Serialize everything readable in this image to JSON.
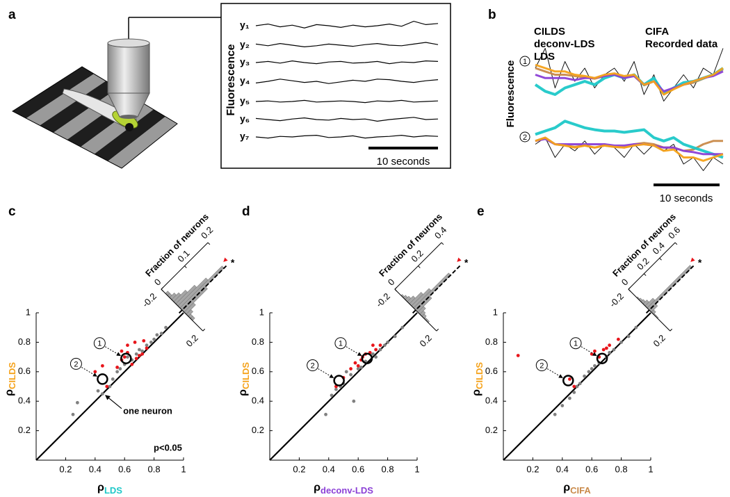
{
  "chart_data": [
    {
      "type": "traces",
      "panel": "a",
      "y_label": "Fluorescence",
      "scale_bar": "10 seconds",
      "series": [
        {
          "name": "y₁",
          "values": [
            0,
            0.3,
            -0.2,
            0.1,
            -0.4,
            0.2,
            0,
            -0.3,
            0.1,
            -0.2,
            0,
            0.3,
            -0.1,
            0.8,
            0.2,
            0.4
          ]
        },
        {
          "name": "y₂",
          "values": [
            0.2,
            -0.1,
            0.3,
            0,
            -0.3,
            -0.1,
            0.2,
            0,
            -0.2,
            0.1,
            0.3,
            0,
            -0.1,
            0.2,
            0.5,
            0.1
          ]
        },
        {
          "name": "y₃",
          "values": [
            0,
            0.2,
            -0.1,
            0.3,
            0,
            -0.2,
            0.1,
            0.2,
            -0.1,
            0,
            0.2,
            -0.2,
            0.1,
            0,
            0.3,
            0.2
          ]
        },
        {
          "name": "y₄",
          "values": [
            -0.3,
            0,
            0.4,
            0.1,
            -0.2,
            0,
            -0.4,
            -0.1,
            0.2,
            0,
            0.4,
            0.3,
            0,
            -0.2,
            0.1,
            0.3
          ]
        },
        {
          "name": "y₅",
          "values": [
            0,
            0.1,
            -0.1,
            0,
            0.2,
            -0.1,
            0,
            0.1,
            0,
            -0.2,
            0.1,
            0,
            0.2,
            -0.1,
            0,
            0.1
          ]
        },
        {
          "name": "y₆",
          "values": [
            0.2,
            0,
            -0.2,
            0.1,
            0.3,
            0,
            -0.1,
            0.2,
            0,
            0.1,
            -0.3,
            0,
            0.2,
            0.4,
            0,
            0.1
          ]
        },
        {
          "name": "y₇",
          "values": [
            0,
            -0.2,
            0.1,
            0,
            0.2,
            0.3,
            -0.1,
            0,
            0.2,
            -0.2,
            0,
            0.1,
            0.3,
            0,
            0.2,
            0.1
          ]
        }
      ]
    },
    {
      "type": "overlay",
      "panel": "b",
      "y_label": "Fluorescence",
      "scale_bar": "10 seconds",
      "neurons": [
        "1",
        "2"
      ],
      "series": [
        {
          "name": "CILDS",
          "color": "#f5a21a",
          "values": [
            [
              0.65,
              0.6,
              0.55,
              0.55,
              0.5,
              0.48,
              0.45,
              0.5,
              0.52,
              0.48,
              0.5,
              0.35,
              0.4,
              0.2,
              0.28,
              0.35,
              0.4,
              0.45,
              0.5,
              0.6
            ],
            [
              0.55,
              0.6,
              0.5,
              0.48,
              0.45,
              0.48,
              0.45,
              0.48,
              0.46,
              0.45,
              0.48,
              0.5,
              0.48,
              0.4,
              0.42,
              0.3,
              0.3,
              0.25,
              0.3,
              0.35
            ]
          ]
        },
        {
          "name": "deconv-LDS",
          "color": "#8b3fd6",
          "values": [
            [
              0.5,
              0.45,
              0.45,
              0.45,
              0.42,
              0.45,
              0.45,
              0.48,
              0.5,
              0.45,
              0.48,
              0.35,
              0.4,
              0.25,
              0.3,
              0.35,
              0.4,
              0.45,
              0.48,
              0.55
            ],
            [
              0.55,
              0.58,
              0.5,
              0.5,
              0.5,
              0.5,
              0.5,
              0.5,
              0.48,
              0.48,
              0.5,
              0.5,
              0.48,
              0.45,
              0.45,
              0.4,
              0.38,
              0.35,
              0.35,
              0.35
            ]
          ]
        },
        {
          "name": "LDS",
          "color": "#1ec8c8",
          "values": [
            [
              0.35,
              0.25,
              0.2,
              0.3,
              0.35,
              0.4,
              0.35,
              0.45,
              0.5,
              0.45,
              0.5,
              0.35,
              0.45,
              0.22,
              0.3,
              0.38,
              0.4,
              0.45,
              0.5,
              0.6
            ],
            [
              0.65,
              0.7,
              0.75,
              0.85,
              0.8,
              0.75,
              0.72,
              0.7,
              0.7,
              0.68,
              0.7,
              0.72,
              0.6,
              0.55,
              0.6,
              0.5,
              0.45,
              0.4,
              0.35,
              0.3
            ]
          ]
        },
        {
          "name": "CIFA",
          "color": "#c98a4a",
          "values": [
            [
              0.6,
              0.55,
              0.5,
              0.5,
              0.48,
              0.46,
              0.44,
              0.48,
              0.5,
              0.46,
              0.48,
              0.34,
              0.4,
              0.22,
              0.3,
              0.35,
              0.38,
              0.44,
              0.5,
              0.58
            ],
            [
              0.55,
              0.6,
              0.5,
              0.48,
              0.46,
              0.48,
              0.45,
              0.48,
              0.46,
              0.45,
              0.5,
              0.52,
              0.5,
              0.45,
              0.45,
              0.4,
              0.42,
              0.5,
              0.55,
              0.55
            ]
          ]
        },
        {
          "name": "Recorded data",
          "color": "#000000",
          "values": [
            [
              0.6,
              0.9,
              0.3,
              0.7,
              0.4,
              0.6,
              0.3,
              0.5,
              0.6,
              0.4,
              0.7,
              0.2,
              0.5,
              0.1,
              0.3,
              0.5,
              0.3,
              0.6,
              0.5,
              0.9
            ],
            [
              0.5,
              0.6,
              0.3,
              0.5,
              0.4,
              0.55,
              0.35,
              0.5,
              0.45,
              0.3,
              0.5,
              0.35,
              0.5,
              0.4,
              0.5,
              0.2,
              0.3,
              0.1,
              0.3,
              0.2
            ]
          ]
        }
      ]
    },
    {
      "type": "scatter",
      "panel": "c",
      "x_label": {
        "symbol": "ρ",
        "subscript": "LDS",
        "color": "#1ec8c8"
      },
      "y_label": {
        "symbol": "ρ",
        "subscript": "CILDS",
        "color": "#f5a21a"
      },
      "xlim": [
        0,
        1
      ],
      "ylim": [
        0,
        1
      ],
      "xticks": [
        0.2,
        0.4,
        0.6,
        0.8,
        1
      ],
      "yticks": [
        0.2,
        0.4,
        0.6,
        0.8,
        1
      ],
      "points": {
        "color": "#808080",
        "x": [
          0.25,
          0.28,
          0.42,
          0.45,
          0.5,
          0.52,
          0.55,
          0.57,
          0.6,
          0.62,
          0.65,
          0.68,
          0.7,
          0.72,
          0.75,
          0.78,
          0.8,
          0.82,
          0.85,
          0.88
        ],
        "y": [
          0.31,
          0.39,
          0.47,
          0.45,
          0.5,
          0.55,
          0.6,
          0.62,
          0.65,
          0.7,
          0.68,
          0.72,
          0.75,
          0.74,
          0.78,
          0.8,
          0.82,
          0.85,
          0.86,
          0.9
        ]
      },
      "significant_points": {
        "color": "#e8151b",
        "x": [
          0.4,
          0.45,
          0.48,
          0.55,
          0.58,
          0.6,
          0.62,
          0.65,
          0.68,
          0.7,
          0.72,
          0.75,
          0.62,
          0.67,
          0.58,
          0.73
        ],
        "y": [
          0.6,
          0.64,
          0.5,
          0.63,
          0.68,
          0.7,
          0.73,
          0.65,
          0.69,
          0.71,
          0.72,
          0.76,
          0.78,
          0.8,
          0.74,
          0.81
        ]
      },
      "highlighted": [
        {
          "label": "1",
          "x": 0.61,
          "y": 0.69
        },
        {
          "label": "2",
          "x": 0.45,
          "y": 0.55
        }
      ],
      "annotations": {
        "one_neuron": "one neuron",
        "p_value": "p<0.05"
      },
      "histogram": {
        "y_label": "Fraction of neurons",
        "color": "#a6a6a6",
        "significance": "*",
        "bins": [
          -0.2,
          -0.18,
          -0.16,
          -0.14,
          -0.12,
          -0.1,
          -0.08,
          -0.06,
          -0.04,
          -0.02,
          0,
          0.02,
          0.04,
          0.06,
          0.08,
          0.1,
          0.12,
          0.14,
          0.16,
          0.18,
          0.2
        ],
        "values": [
          0,
          0,
          0.01,
          0.01,
          0.02,
          0.03,
          0.05,
          0.08,
          0.12,
          0.18,
          0.1,
          0.04,
          0.02,
          0.01,
          0.01,
          0,
          0,
          0,
          0,
          0
        ],
        "ylim": [
          0,
          0.2
        ],
        "yticks": [
          0,
          0.1,
          0.2
        ],
        "xticks": [
          -0.2,
          0.2
        ]
      }
    },
    {
      "type": "scatter",
      "panel": "d",
      "x_label": {
        "symbol": "ρ",
        "subscript": "deconv-LDS",
        "color": "#8b3fd6"
      },
      "y_label": {
        "symbol": "ρ",
        "subscript": "CILDS",
        "color": "#f5a21a"
      },
      "xlim": [
        0,
        1
      ],
      "ylim": [
        0,
        1
      ],
      "xticks": [
        0.2,
        0.4,
        0.6,
        0.8,
        1
      ],
      "yticks": [
        0.2,
        0.4,
        0.6,
        0.8,
        1
      ],
      "points": {
        "color": "#808080",
        "x": [
          0.38,
          0.42,
          0.45,
          0.5,
          0.55,
          0.57,
          0.6,
          0.62,
          0.65,
          0.7,
          0.72,
          0.75,
          0.78,
          0.8,
          0.85,
          0.9,
          0.52,
          0.48
        ],
        "y": [
          0.31,
          0.44,
          0.48,
          0.52,
          0.58,
          0.4,
          0.62,
          0.63,
          0.67,
          0.72,
          0.7,
          0.75,
          0.78,
          0.8,
          0.84,
          0.9,
          0.6,
          0.5
        ]
      },
      "significant_points": {
        "color": "#e8151b",
        "x": [
          0.45,
          0.5,
          0.55,
          0.58,
          0.6,
          0.63,
          0.65,
          0.68,
          0.7,
          0.72,
          0.75,
          0.62
        ],
        "y": [
          0.5,
          0.56,
          0.62,
          0.66,
          0.64,
          0.7,
          0.72,
          0.73,
          0.78,
          0.75,
          0.78,
          0.68
        ]
      },
      "highlighted": [
        {
          "label": "1",
          "x": 0.66,
          "y": 0.69
        },
        {
          "label": "2",
          "x": 0.47,
          "y": 0.54
        }
      ],
      "histogram": {
        "y_label": "Fraction of neurons",
        "color": "#a6a6a6",
        "significance": "*",
        "bins": [
          -0.2,
          -0.18,
          -0.16,
          -0.14,
          -0.12,
          -0.1,
          -0.08,
          -0.06,
          -0.04,
          -0.02,
          0,
          0.02,
          0.04,
          0.06,
          0.08,
          0.1,
          0.12,
          0.14,
          0.16,
          0.18,
          0.2
        ],
        "values": [
          0,
          0,
          0,
          0.01,
          0.02,
          0.03,
          0.05,
          0.1,
          0.15,
          0.3,
          0.12,
          0.05,
          0.03,
          0.02,
          0.01,
          0.01,
          0,
          0,
          0,
          0
        ],
        "ylim": [
          0,
          0.4
        ],
        "yticks": [
          0,
          0.2,
          0.4
        ],
        "xticks": [
          -0.2,
          0.2
        ]
      }
    },
    {
      "type": "scatter",
      "panel": "e",
      "x_label": {
        "symbol": "ρ",
        "subscript": "CIFA",
        "color": "#c98a4a"
      },
      "y_label": {
        "symbol": "ρ",
        "subscript": "CILDS",
        "color": "#f5a21a"
      },
      "xlim": [
        0,
        1
      ],
      "ylim": [
        0,
        1
      ],
      "xticks": [
        0.2,
        0.4,
        0.6,
        0.8,
        1
      ],
      "yticks": [
        0.2,
        0.4,
        0.6,
        0.8,
        1
      ],
      "points": {
        "color": "#808080",
        "x": [
          0.35,
          0.4,
          0.45,
          0.5,
          0.52,
          0.55,
          0.58,
          0.6,
          0.62,
          0.65,
          0.7,
          0.72,
          0.75,
          0.8,
          0.85,
          0.9,
          0.48
        ],
        "y": [
          0.31,
          0.37,
          0.42,
          0.5,
          0.52,
          0.57,
          0.6,
          0.62,
          0.64,
          0.66,
          0.7,
          0.73,
          0.75,
          0.8,
          0.84,
          0.9,
          0.46
        ]
      },
      "significant_points": {
        "color": "#e8151b",
        "x": [
          0.1,
          0.45,
          0.48,
          0.6,
          0.62,
          0.65,
          0.68,
          0.7,
          0.72,
          0.78
        ],
        "y": [
          0.71,
          0.55,
          0.5,
          0.72,
          0.74,
          0.7,
          0.75,
          0.76,
          0.78,
          0.82
        ]
      },
      "highlighted": [
        {
          "label": "1",
          "x": 0.67,
          "y": 0.69
        },
        {
          "label": "2",
          "x": 0.44,
          "y": 0.54
        }
      ],
      "histogram": {
        "y_label": "Fraction of neurons",
        "color": "#a6a6a6",
        "significance": "*",
        "bins": [
          -0.2,
          -0.18,
          -0.16,
          -0.14,
          -0.12,
          -0.1,
          -0.08,
          -0.06,
          -0.04,
          -0.02,
          0,
          0.02,
          0.04,
          0.06,
          0.08,
          0.1,
          0.12,
          0.14,
          0.16,
          0.18,
          0.2
        ],
        "values": [
          0,
          0,
          0,
          0,
          0.01,
          0.02,
          0.03,
          0.05,
          0.1,
          0.55,
          0.08,
          0.03,
          0.01,
          0.01,
          0,
          0,
          0,
          0,
          0,
          0
        ],
        "ylim": [
          0,
          0.6
        ],
        "yticks": [
          0,
          0.2,
          0.4,
          0.6
        ],
        "xticks": [
          -0.2,
          0.2
        ]
      }
    }
  ]
}
